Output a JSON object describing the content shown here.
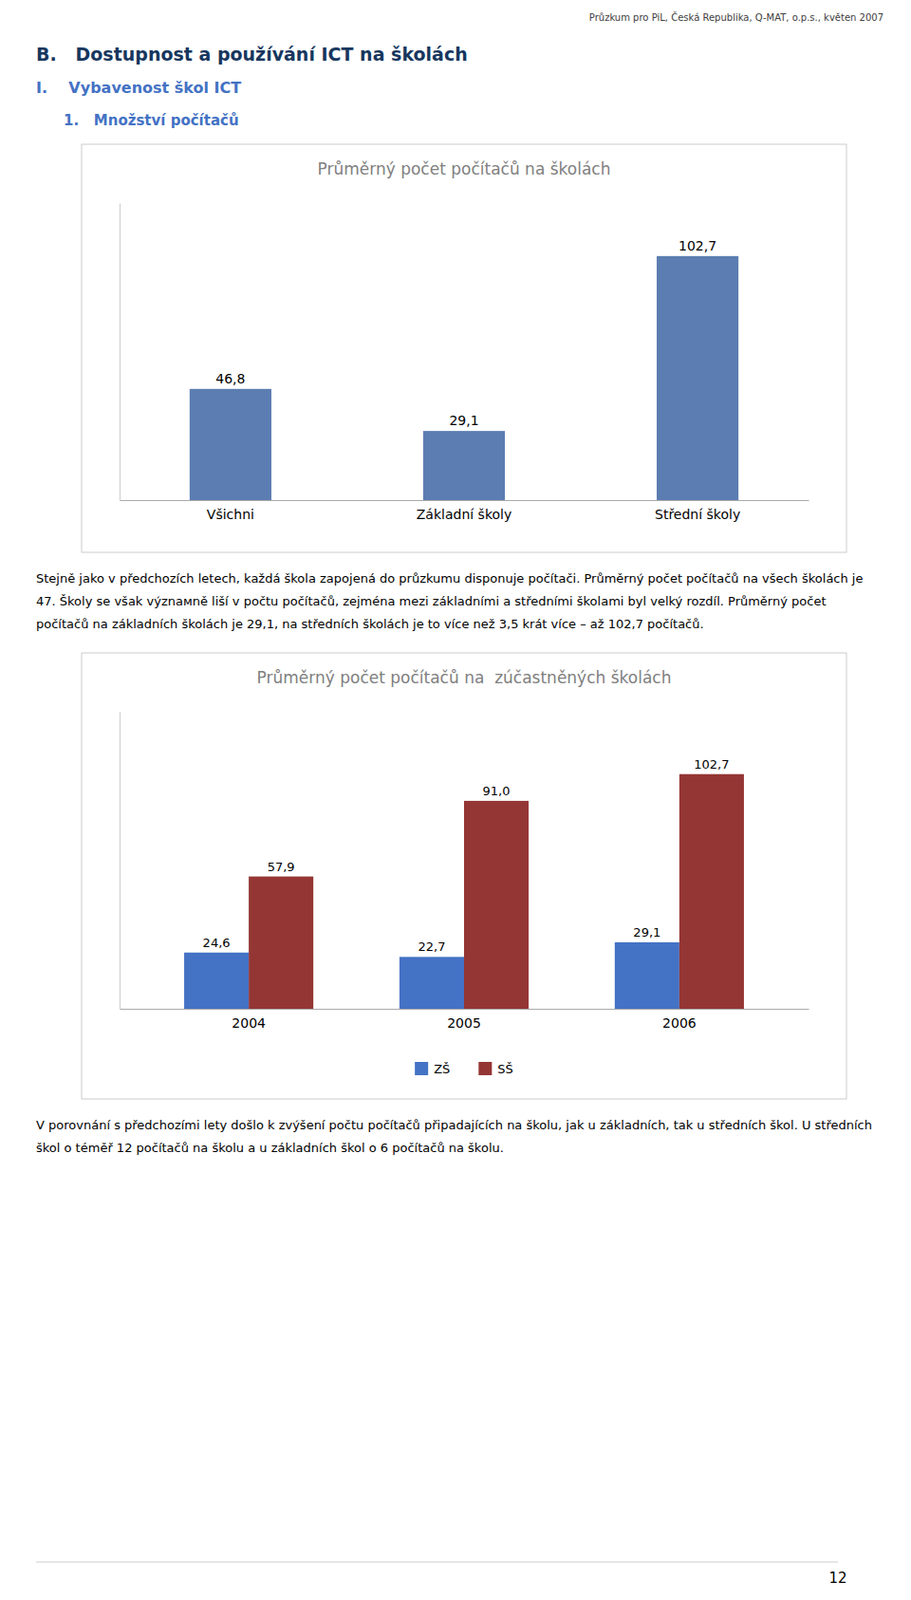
{
  "page_title": "Průzkum pro PiL, Česká Republika, Q-MAT, o.p.s., květen 2007",
  "headings": [
    "B.   Dostupnost a používání ICT na školách",
    "I.    Vybavenost škol ICT",
    "1.   Množství počítačů"
  ],
  "paragraphs": [
    "Stejně jako v předchozích letech, každá škola zapojená do průzkumu disponuje počítači. Průměrný počet počítačů na všech školách je 47. Školy se však význамně liší v počtu počítačů, zejména mezi základními a středními školami byl velký rozdíl. Průměrný počet počítačů na základních školách je 29,1, na středních školách je to více než 3,5 krát více – až 102,7 počítačů.",
    "V porovnání s předchozími lety došlo k zvýšení počtu počítačů připadajících na školu, jak u základních, tak u středních škol. U středních škol o téměř 12 počítačů na školu a u základních škol o 6 počítačů na školu."
  ],
  "page_number": "12",
  "chart_data": [
    {
      "type": "bar",
      "title": "Průměrný počet počítačů na školách",
      "categories": [
        "Všichni",
        "Základní školy",
        "Střední školy"
      ],
      "values": [
        46.8,
        29.1,
        102.7
      ],
      "value_labels": [
        "46,8",
        "29,1",
        "102,7"
      ],
      "color": "#5b7db1",
      "ylim": [
        0,
        125
      ],
      "grid": false,
      "data_labels": true,
      "tick_labels": "x"
    },
    {
      "type": "bar",
      "title": "Průměrný počet počítačů na  zúčastněných školách",
      "categories": [
        "2004",
        "2005",
        "2006"
      ],
      "series": [
        {
          "name": "ZŠ",
          "color": "#4472c4",
          "values": [
            24.6,
            22.7,
            29.1
          ],
          "value_labels": [
            "24,6",
            "22,7",
            "29,1"
          ]
        },
        {
          "name": "SŠ",
          "color": "#943634",
          "values": [
            57.9,
            91.0,
            102.7
          ],
          "value_labels": [
            "57,9",
            "91,0",
            "102,7"
          ]
        }
      ],
      "ylim": [
        0,
        130
      ],
      "grid": false,
      "legend": "bottom",
      "data_labels": true,
      "tick_labels": "x"
    }
  ]
}
